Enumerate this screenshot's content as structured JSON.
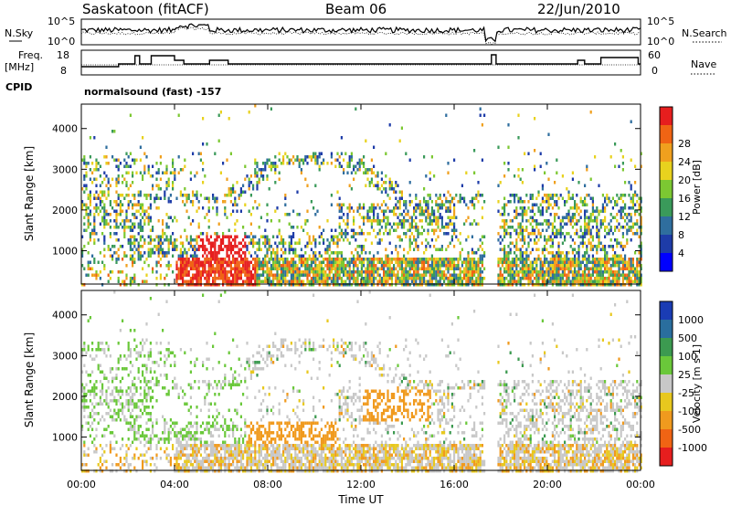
{
  "header": {
    "station": "Saskatoon (fitACF)",
    "beam": "Beam 06",
    "date": "22/Jun/2010"
  },
  "noise_panel": {
    "left_label": "N.Sky",
    "right_label": "N.Search",
    "left_ticks": [
      "10^5",
      "10^0"
    ],
    "right_ticks": [
      "10^5",
      "10^0"
    ]
  },
  "freq_panel": {
    "left_label_1": "Freq.",
    "left_label_2": "[MHz]",
    "left_ticks": [
      "18",
      "8"
    ],
    "right_label": "Nave",
    "right_ticks": [
      "60",
      "0"
    ]
  },
  "cpid": {
    "label": "CPID",
    "value": "normalsound (fast) -157"
  },
  "chart_data": [
    {
      "type": "heatmap",
      "parameter": "Power",
      "ylabel": "Slant Range [km]",
      "ylim": [
        180,
        4600
      ],
      "yticks": [
        "1000",
        "2000",
        "3000",
        "4000"
      ],
      "xlim": [
        "00:00",
        "24:00"
      ],
      "colorbar": {
        "label": "Power [dB]",
        "ticks": [
          "4",
          "8",
          "12",
          "16",
          "20",
          "24",
          "28"
        ],
        "colors": [
          "#0000ff",
          "#1e3ca8",
          "#2f6e9e",
          "#3a9a5a",
          "#7cc832",
          "#e8d21e",
          "#f0a01e",
          "#f06414",
          "#e61e1e"
        ]
      }
    },
    {
      "type": "heatmap",
      "parameter": "Velocity",
      "ylabel": "Slant Range [km]",
      "ylim": [
        180,
        4600
      ],
      "yticks": [
        "1000",
        "2000",
        "3000",
        "4000"
      ],
      "xlim": [
        "00:00",
        "24:00"
      ],
      "xlabel": "Time UT",
      "xticks": [
        "00:00",
        "04:00",
        "08:00",
        "12:00",
        "16:00",
        "20:00",
        "00:00"
      ],
      "colorbar": {
        "label": "Velocity [m s-1]",
        "ticks": [
          "1000",
          "500",
          "100",
          "25",
          "-25",
          "-100",
          "-500",
          "-1000"
        ],
        "colors": [
          "#1a3cb4",
          "#2a6e9e",
          "#3c9a50",
          "#6ac83a",
          "#c8c8c8",
          "#e8c81e",
          "#f09a1e",
          "#f06414",
          "#e61e1e"
        ]
      }
    }
  ]
}
